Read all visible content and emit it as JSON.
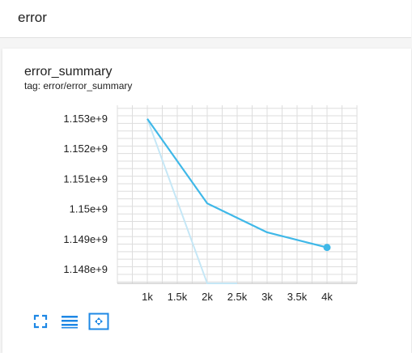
{
  "header": {
    "title": "error"
  },
  "card": {
    "title": "error_summary",
    "tag": "tag: error/error_summary"
  },
  "colors": {
    "smoothed_line": "#3fb8e8",
    "raw_line": "#c5e7f6",
    "grid": "#dddddd",
    "icon": "#1e88e5"
  },
  "toolbar": {
    "icons": [
      "fullscreen-icon",
      "toggle-log-scale-icon",
      "fit-domain-icon"
    ]
  },
  "chart_data": {
    "type": "line",
    "x": [
      1000,
      2000,
      2500,
      3000,
      3500,
      4000
    ],
    "series": [
      {
        "values": [
          1153000000.0,
          1150200000.0,
          null,
          1149240000.0,
          null,
          1148740000.0
        ]
      },
      {
        "values": [
          1153000000.0,
          1147550000.0,
          1147550000.0,
          null,
          null,
          null
        ]
      }
    ],
    "x_ticks": [
      "1k",
      "1.5k",
      "2k",
      "2.5k",
      "3k",
      "3.5k",
      "4k"
    ],
    "x_tick_values": [
      1000,
      1500,
      2000,
      2500,
      3000,
      3500,
      4000
    ],
    "y_ticks": [
      "1.148e+9",
      "1.149e+9",
      "1.15e+9",
      "1.151e+9",
      "1.152e+9",
      "1.153e+9"
    ],
    "y_tick_values": [
      1148000000.0,
      1149000000.0,
      1150000000.0,
      1151000000.0,
      1152000000.0,
      1153000000.0
    ],
    "xlim": [
      500,
      4500
    ],
    "ylim": [
      1147550000.0,
      1153450000.0
    ],
    "grid": true,
    "legend": "none"
  }
}
